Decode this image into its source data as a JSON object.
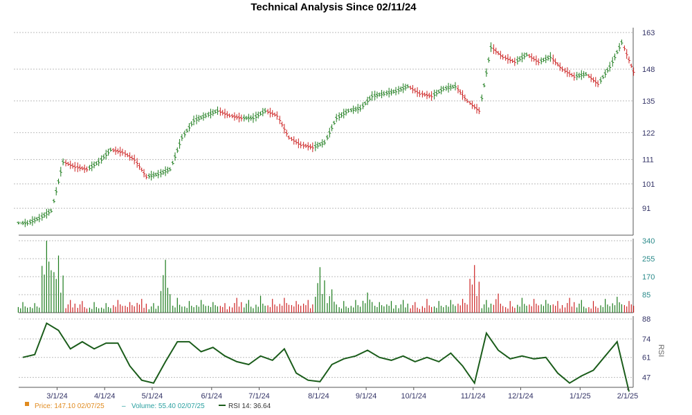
{
  "title": "Technical Analysis Since 02/11/24",
  "colors": {
    "up": "#1a7a1a",
    "down": "#cc2222",
    "rsi_line": "#1a5c1a",
    "grid": "#bbbbbb",
    "price_legend": "#e08a1e",
    "volume_legend": "#2aa0a0"
  },
  "legend": {
    "price": "Price: 147.10  02/07/25",
    "volume": "Volume: 55.40  02/07/25",
    "rsi": "RSI 14: 36.64"
  },
  "chart_data": [
    {
      "type": "line",
      "panel": "price",
      "title": "Technical Analysis Since 02/11/24",
      "yticks": [
        91,
        101,
        111,
        122,
        135,
        148,
        163
      ],
      "ylim": [
        80,
        165
      ],
      "grid": true,
      "note_series": "daily closing price (OHLC bars), weekly samples",
      "dates": [
        "2/12/24",
        "2/19/24",
        "2/26/24",
        "3/4/24",
        "3/11/24",
        "3/18/24",
        "3/25/24",
        "4/1/24",
        "4/8/24",
        "4/15/24",
        "4/22/24",
        "4/29/24",
        "5/6/24",
        "5/13/24",
        "5/20/24",
        "5/28/24",
        "6/3/24",
        "6/10/24",
        "6/17/24",
        "6/24/24",
        "7/1/24",
        "7/8/24",
        "7/15/24",
        "7/22/24",
        "7/29/24",
        "8/5/24",
        "8/12/24",
        "8/19/24",
        "8/26/24",
        "9/3/24",
        "9/9/24",
        "9/16/24",
        "9/23/24",
        "9/30/24",
        "10/7/24",
        "10/14/24",
        "10/21/24",
        "10/28/24",
        "11/4/24",
        "11/11/24",
        "11/18/24",
        "11/25/24",
        "12/2/24",
        "12/9/24",
        "12/16/24",
        "12/23/24",
        "12/30/24",
        "1/6/25",
        "1/13/25",
        "1/21/25",
        "1/27/25",
        "2/3/25"
      ],
      "close": [
        85,
        87,
        90,
        110,
        108,
        107,
        110,
        115,
        114,
        111,
        104,
        105,
        107,
        120,
        127,
        129,
        131,
        129,
        128,
        128,
        131,
        129,
        120,
        117,
        116,
        118,
        128,
        131,
        132,
        137,
        138,
        139,
        141,
        138,
        137,
        140,
        141,
        135,
        131,
        157,
        153,
        151,
        154,
        151,
        153,
        148,
        145,
        146,
        142,
        149,
        159,
        147
      ]
    },
    {
      "type": "bar",
      "panel": "volume",
      "yticks": [
        85,
        170,
        255,
        340
      ],
      "ylim": [
        0,
        350
      ],
      "grid": true,
      "dates": [
        "2/12/24",
        "2/19/24",
        "2/26/24",
        "3/4/24",
        "3/11/24",
        "3/18/24",
        "3/25/24",
        "4/1/24",
        "4/8/24",
        "4/15/24",
        "4/22/24",
        "4/29/24",
        "5/6/24",
        "5/13/24",
        "5/20/24",
        "5/28/24",
        "6/3/24",
        "6/10/24",
        "6/17/24",
        "6/24/24",
        "7/1/24",
        "7/8/24",
        "7/15/24",
        "7/22/24",
        "7/29/24",
        "8/5/24",
        "8/12/24",
        "8/19/24",
        "8/26/24",
        "9/3/24",
        "9/9/24",
        "9/16/24",
        "9/23/24",
        "9/30/24",
        "10/7/24",
        "10/14/24",
        "10/21/24",
        "10/28/24",
        "11/4/24",
        "11/11/24",
        "11/18/24",
        "11/25/24",
        "12/2/24",
        "12/9/24",
        "12/16/24",
        "12/23/24",
        "12/30/24",
        "1/6/25",
        "1/13/25",
        "1/21/25",
        "1/27/25",
        "2/3/25"
      ],
      "values": [
        50,
        45,
        340,
        270,
        60,
        55,
        50,
        45,
        60,
        50,
        65,
        45,
        250,
        70,
        55,
        60,
        50,
        45,
        70,
        60,
        80,
        65,
        70,
        55,
        60,
        215,
        110,
        55,
        60,
        95,
        50,
        55,
        60,
        50,
        65,
        55,
        60,
        65,
        225,
        60,
        90,
        55,
        70,
        65,
        60,
        55,
        70,
        60,
        55,
        65,
        75,
        55
      ]
    },
    {
      "type": "line",
      "panel": "rsi",
      "ylabel": "RSI",
      "yticks": [
        47,
        61,
        74,
        88
      ],
      "ylim": [
        40,
        90
      ],
      "grid": true,
      "dates": [
        "2/12/24",
        "2/19/24",
        "2/26/24",
        "3/4/24",
        "3/11/24",
        "3/18/24",
        "3/25/24",
        "4/1/24",
        "4/8/24",
        "4/15/24",
        "4/22/24",
        "4/29/24",
        "5/6/24",
        "5/13/24",
        "5/20/24",
        "5/28/24",
        "6/3/24",
        "6/10/24",
        "6/17/24",
        "6/24/24",
        "7/1/24",
        "7/8/24",
        "7/15/24",
        "7/22/24",
        "7/29/24",
        "8/5/24",
        "8/12/24",
        "8/19/24",
        "8/26/24",
        "9/3/24",
        "9/9/24",
        "9/16/24",
        "9/23/24",
        "9/30/24",
        "10/7/24",
        "10/14/24",
        "10/21/24",
        "10/28/24",
        "11/4/24",
        "11/11/24",
        "11/18/24",
        "11/25/24",
        "12/2/24",
        "12/9/24",
        "12/16/24",
        "12/23/24",
        "12/30/24",
        "1/6/25",
        "1/13/25",
        "1/21/25",
        "1/27/25",
        "2/3/25"
      ],
      "values": [
        61,
        63,
        85,
        80,
        67,
        72,
        67,
        71,
        71,
        55,
        45,
        43,
        58,
        72,
        72,
        65,
        68,
        62,
        58,
        56,
        62,
        59,
        67,
        50,
        45,
        44,
        56,
        60,
        62,
        66,
        61,
        59,
        62,
        58,
        61,
        58,
        64,
        55,
        43,
        78,
        66,
        60,
        62,
        60,
        61,
        50,
        43,
        48,
        52,
        62,
        72,
        37
      ]
    }
  ],
  "xticks": [
    "3/1/24",
    "4/1/24",
    "5/1/24",
    "6/1/24",
    "7/1/24",
    "8/1/24",
    "9/1/24",
    "10/1/24",
    "11/1/24",
    "12/1/24",
    "1/1/25",
    "2/1/25"
  ]
}
